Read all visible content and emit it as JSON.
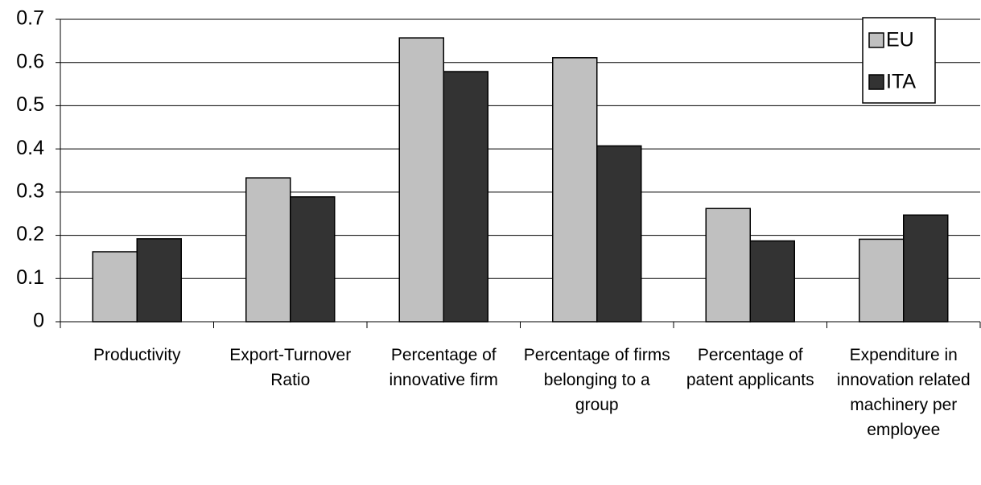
{
  "chart_data": {
    "type": "bar",
    "categories": [
      "Productivity",
      "Export-Turnover Ratio",
      "Percentage of innovative firm",
      "Percentage of firms belonging to a group",
      "Percentage of patent applicants",
      "Expenditure in innovation related machinery per employee"
    ],
    "series": [
      {
        "name": "EU",
        "color": "#c0c0c0",
        "values": [
          0.162,
          0.333,
          0.657,
          0.611,
          0.262,
          0.191
        ]
      },
      {
        "name": "ITA",
        "color": "#333333",
        "values": [
          0.192,
          0.289,
          0.579,
          0.407,
          0.187,
          0.247
        ]
      }
    ],
    "ylim": [
      0,
      0.7
    ],
    "yticks": [
      0,
      0.1,
      0.2,
      0.3,
      0.4,
      0.5,
      0.6,
      0.7
    ],
    "grid": true,
    "legend": "top-right"
  }
}
